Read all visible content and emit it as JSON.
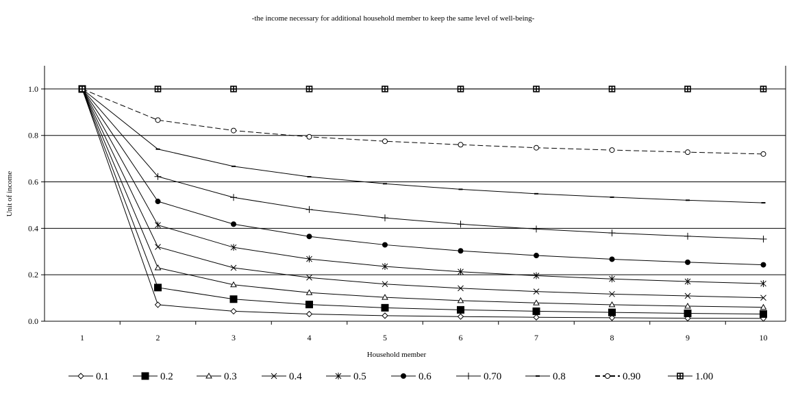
{
  "chart_data": {
    "type": "line",
    "title": "-the income necessary for additional household member to keep the same level of well-being-",
    "xlabel": "Household member",
    "ylabel": "Unit of income",
    "x": [
      1,
      2,
      3,
      4,
      5,
      6,
      7,
      8,
      9,
      10
    ],
    "x_tick_labels": [
      "1",
      "2",
      "3",
      "4",
      "5",
      "6",
      "7",
      "8",
      "9",
      "10"
    ],
    "ylim": [
      0,
      1.1
    ],
    "y_ticks": [
      0.0,
      0.2,
      0.4,
      0.6,
      0.8,
      1.0
    ],
    "y_tick_labels": [
      "0.0",
      "0.2",
      "0.4",
      "0.6",
      "0.8",
      "1.0"
    ],
    "grid": "horizontal",
    "legend_position": "bottom",
    "series": [
      {
        "name": "0.1",
        "marker": "diamond-open",
        "dash": "solid",
        "values": [
          1.0,
          0.071,
          0.043,
          0.031,
          0.024,
          0.02,
          0.017,
          0.015,
          0.013,
          0.012
        ]
      },
      {
        "name": "0.2",
        "marker": "square-filled",
        "dash": "solid",
        "values": [
          1.0,
          0.145,
          0.095,
          0.072,
          0.058,
          0.049,
          0.043,
          0.038,
          0.034,
          0.031
        ]
      },
      {
        "name": "0.3",
        "marker": "triangle-open",
        "dash": "solid",
        "values": [
          1.0,
          0.23,
          0.157,
          0.123,
          0.103,
          0.089,
          0.079,
          0.071,
          0.065,
          0.06
        ]
      },
      {
        "name": "0.4",
        "marker": "x",
        "dash": "solid",
        "values": [
          1.0,
          0.32,
          0.23,
          0.188,
          0.16,
          0.142,
          0.128,
          0.117,
          0.109,
          0.101
        ]
      },
      {
        "name": "0.5",
        "marker": "asterisk",
        "dash": "solid",
        "values": [
          1.0,
          0.414,
          0.318,
          0.268,
          0.236,
          0.213,
          0.196,
          0.182,
          0.171,
          0.162
        ]
      },
      {
        "name": "0.6",
        "marker": "circle-filled",
        "dash": "solid",
        "values": [
          1.0,
          0.516,
          0.418,
          0.365,
          0.329,
          0.303,
          0.283,
          0.267,
          0.254,
          0.243
        ]
      },
      {
        "name": "0.70",
        "marker": "plus",
        "dash": "solid",
        "values": [
          1.0,
          0.623,
          0.533,
          0.481,
          0.445,
          0.418,
          0.397,
          0.38,
          0.366,
          0.354
        ]
      },
      {
        "name": "0.8",
        "marker": "dash",
        "dash": "solid",
        "values": [
          1.0,
          0.741,
          0.667,
          0.622,
          0.592,
          0.568,
          0.549,
          0.534,
          0.521,
          0.51
        ]
      },
      {
        "name": "0.90",
        "marker": "circle-open",
        "dash": "dashed",
        "values": [
          1.0,
          0.866,
          0.821,
          0.794,
          0.775,
          0.76,
          0.747,
          0.737,
          0.728,
          0.72
        ]
      },
      {
        "name": "1.00",
        "marker": "square-cross",
        "dash": "solid",
        "values": [
          1.0,
          1.0,
          1.0,
          1.0,
          1.0,
          1.0,
          1.0,
          1.0,
          1.0,
          1.0
        ]
      }
    ]
  }
}
